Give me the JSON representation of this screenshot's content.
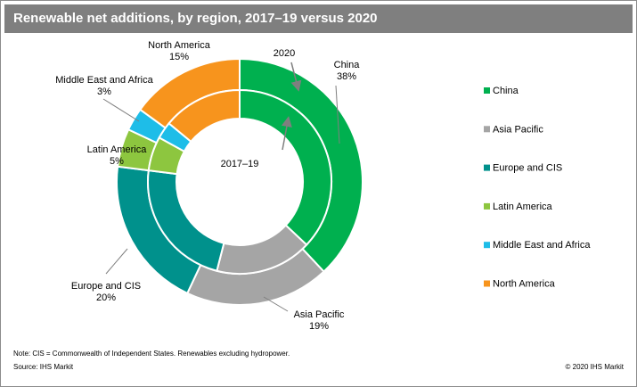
{
  "title": "Renewable net additions, by region, 2017–19 versus 2020",
  "note": "Note: CIS = Commonwealth of Independent States. Renewables excluding hydropower.",
  "source": "Source: IHS Markit",
  "copyright": "© 2020 IHS Markit",
  "chart_data": {
    "type": "pie",
    "subtype": "double-donut",
    "categories": [
      "China",
      "Asia Pacific",
      "Europe and CIS",
      "Latin America",
      "Middle East and Africa",
      "North America"
    ],
    "colors": [
      "#00b04f",
      "#a5a5a5",
      "#00918c",
      "#8dc63f",
      "#1ebde8",
      "#f7941d"
    ],
    "series": [
      {
        "name": "2020",
        "ring": "outer",
        "values": [
          38,
          19,
          20,
          5,
          3,
          15
        ]
      },
      {
        "name": "2017–19",
        "ring": "inner",
        "values": [
          37,
          17,
          23,
          6,
          3,
          14
        ]
      }
    ],
    "outer_labels": [
      {
        "category": "China",
        "name": "China",
        "pct": "38%"
      },
      {
        "category": "Asia Pacific",
        "name": "Asia Pacific",
        "pct": "19%"
      },
      {
        "category": "Europe and CIS",
        "name": "Europe and CIS",
        "pct": "20%"
      },
      {
        "category": "Latin America",
        "name": "Latin America",
        "pct": "5%"
      },
      {
        "category": "Middle East and Africa",
        "name": "Middle East and Africa",
        "pct": "3%"
      },
      {
        "category": "North America",
        "name": "North America",
        "pct": "15%"
      }
    ],
    "outer_ring_label": "2020",
    "inner_ring_label": "2017–19",
    "legend": [
      "China",
      "Asia Pacific",
      "Europe and CIS",
      "Latin America",
      "Middle East and Africa",
      "North America"
    ],
    "legend_position": "right"
  }
}
